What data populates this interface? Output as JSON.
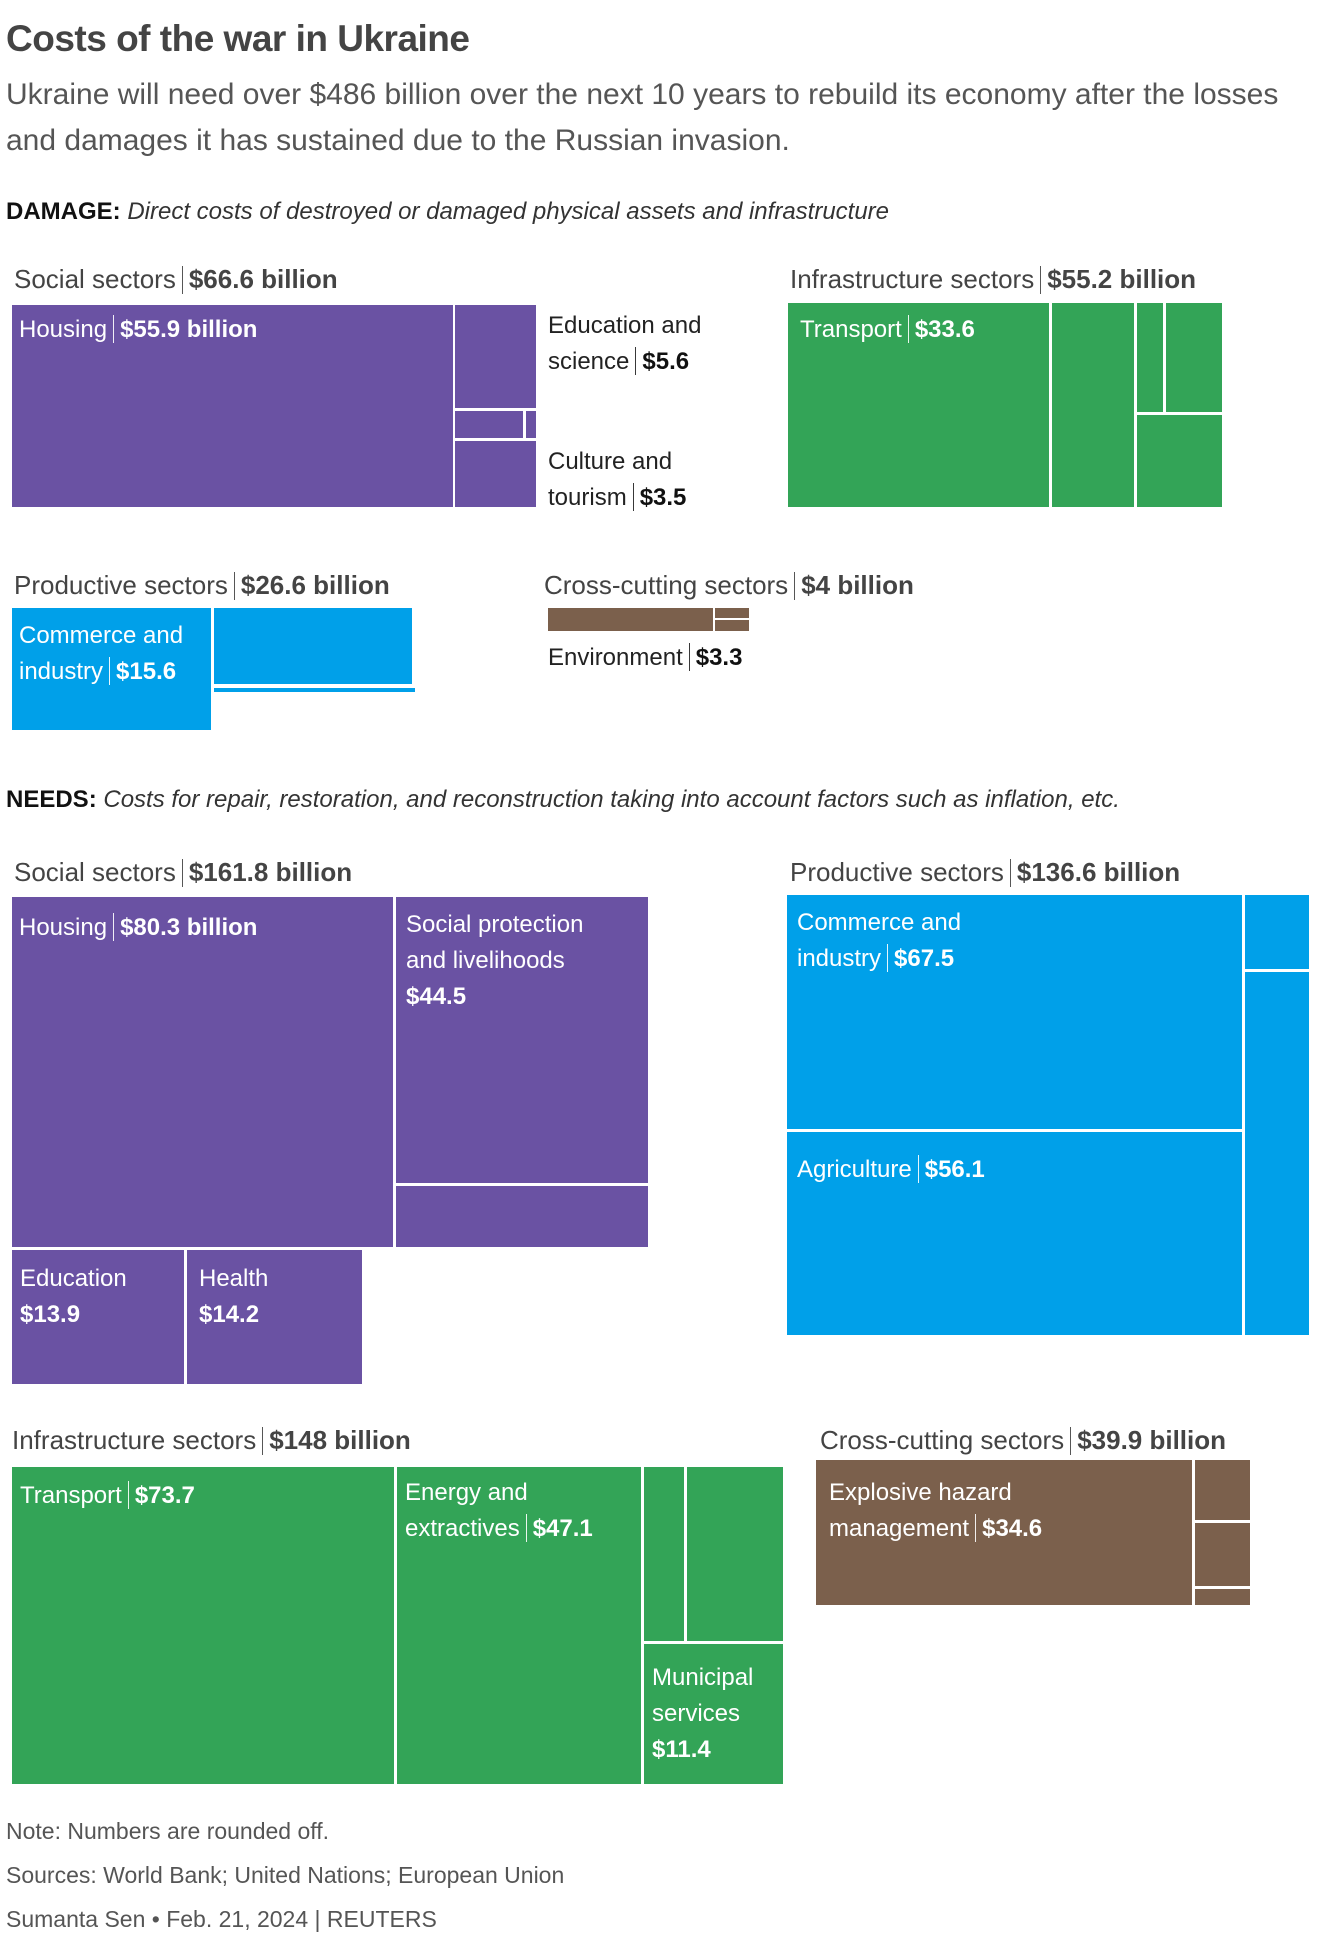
{
  "header": {
    "title": "Costs of the war in Ukraine",
    "subtitle": "Ukraine will need over $486 billion over the next 10 years to rebuild its economy after the losses and damages it has sustained due to the Russian invasion."
  },
  "colors": {
    "social": "#6a52a3",
    "infrastructure": "#33a457",
    "productive": "#00a0e9",
    "crosscutting": "#7b604c"
  },
  "chart_data": {
    "type": "treemap",
    "title": "Costs of the war in Ukraine",
    "units": "billion USD",
    "damage": {
      "heading": "DAMAGE:",
      "description": "Direct costs of destroyed or damaged physical assets and infrastructure",
      "groups": {
        "social": {
          "name": "Social sectors",
          "total": "$66.6 billion",
          "value": 66.6,
          "items": [
            {
              "name": "Housing",
              "label": "$55.9 billion",
              "value": 55.9
            },
            {
              "name": "Education and",
              "name2": "science",
              "label": "$5.6",
              "value": 5.6
            },
            {
              "name": "Culture and",
              "name2": "tourism",
              "label": "$3.5",
              "value": 3.5
            }
          ]
        },
        "infrastructure": {
          "name": "Infrastructure sectors",
          "total": "$55.2 billion",
          "value": 55.2,
          "items": [
            {
              "name": "Transport",
              "label": "$33.6",
              "value": 33.6
            }
          ]
        },
        "productive": {
          "name": "Productive sectors",
          "total": "$26.6 billion",
          "value": 26.6,
          "items": [
            {
              "name": "Commerce and",
              "name2": "industry",
              "label": "$15.6",
              "value": 15.6
            }
          ]
        },
        "crosscutting": {
          "name": "Cross-cutting sectors",
          "total": "$4 billion",
          "value": 4,
          "items": [
            {
              "name": "Environment",
              "label": "$3.3",
              "value": 3.3
            }
          ]
        }
      }
    },
    "needs": {
      "heading": "NEEDS:",
      "description": "Costs for repair, restoration, and reconstruction taking into account factors such as inflation, etc.",
      "groups": {
        "social": {
          "name": "Social sectors",
          "total": "$161.8 billion",
          "value": 161.8,
          "items": [
            {
              "name": "Housing",
              "label": "$80.3 billion",
              "value": 80.3
            },
            {
              "name": "Social protection",
              "name2": "and livelihoods",
              "label": "$44.5",
              "value": 44.5
            },
            {
              "name": "Education",
              "label": "$13.9",
              "value": 13.9
            },
            {
              "name": "Health",
              "label": "$14.2",
              "value": 14.2
            }
          ]
        },
        "productive": {
          "name": "Productive sectors",
          "total": "$136.6 billion",
          "value": 136.6,
          "items": [
            {
              "name": "Commerce and",
              "name2": "industry",
              "label": "$67.5",
              "value": 67.5
            },
            {
              "name": "Agriculture",
              "label": "$56.1",
              "value": 56.1
            }
          ]
        },
        "infrastructure": {
          "name": "Infrastructure sectors",
          "total": "$148 billion",
          "value": 148,
          "items": [
            {
              "name": "Transport",
              "label": "$73.7",
              "value": 73.7
            },
            {
              "name": "Energy and",
              "name2": "extractives",
              "label": "$47.1",
              "value": 47.1
            },
            {
              "name": "Municipal",
              "name2": "services",
              "label": "$11.4",
              "value": 11.4
            }
          ]
        },
        "crosscutting": {
          "name": "Cross-cutting sectors",
          "total": "$39.9 billion",
          "value": 39.9,
          "items": [
            {
              "name": "Explosive hazard",
              "name2": "management",
              "label": "$34.6",
              "value": 34.6
            }
          ]
        }
      }
    }
  },
  "footer": {
    "note": "Note: Numbers are rounded off.",
    "sources": "Sources: World Bank; United Nations; European Union",
    "credit": "Sumanta Sen • Feb. 21, 2024 | REUTERS"
  }
}
